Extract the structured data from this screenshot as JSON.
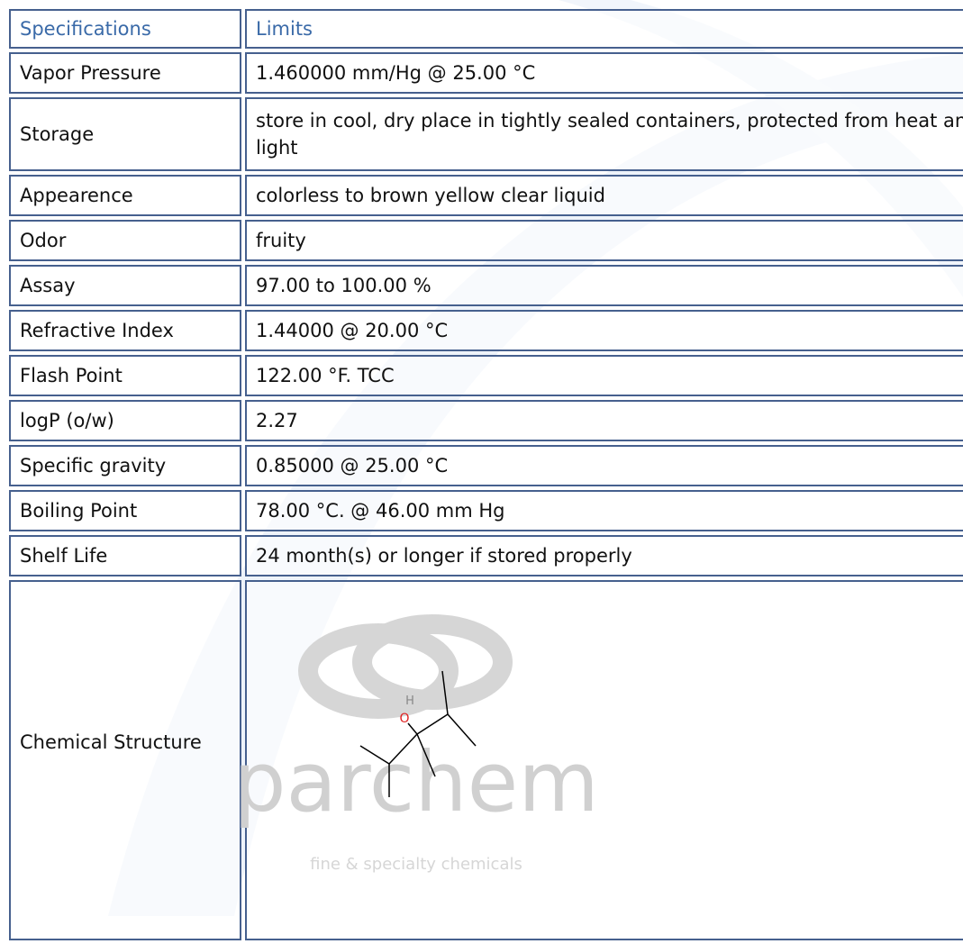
{
  "table": {
    "header": [
      "Specifications",
      "Limits"
    ],
    "rows": [
      [
        "Vapor Pressure",
        "1.460000 mm/Hg @ 25.00 °C"
      ],
      [
        "Storage",
        "store in cool, dry place in tightly sealed containers, protected from heat and light"
      ],
      [
        "Appearence",
        "colorless to brown yellow clear liquid"
      ],
      [
        "Odor",
        "fruity"
      ],
      [
        "Assay",
        "97.00 to 100.00 %"
      ],
      [
        "Refractive Index",
        "1.44000 @ 20.00 °C"
      ],
      [
        "Flash Point",
        "122.00 °F. TCC"
      ],
      [
        "logP (o/w)",
        "2.27"
      ],
      [
        "Specific gravity",
        "0.85000 @ 25.00 °C"
      ],
      [
        "Boiling Point",
        "78.00 °C. @ 46.00 mm Hg"
      ],
      [
        "Shelf Life",
        "24 month(s) or longer if stored properly"
      ],
      [
        "Chemical Structure",
        ""
      ]
    ]
  },
  "structure": {
    "atoms": [
      "H",
      "O"
    ],
    "watermark": {
      "brand": "parchem",
      "tagline": "fine & specialty chemicals"
    }
  }
}
